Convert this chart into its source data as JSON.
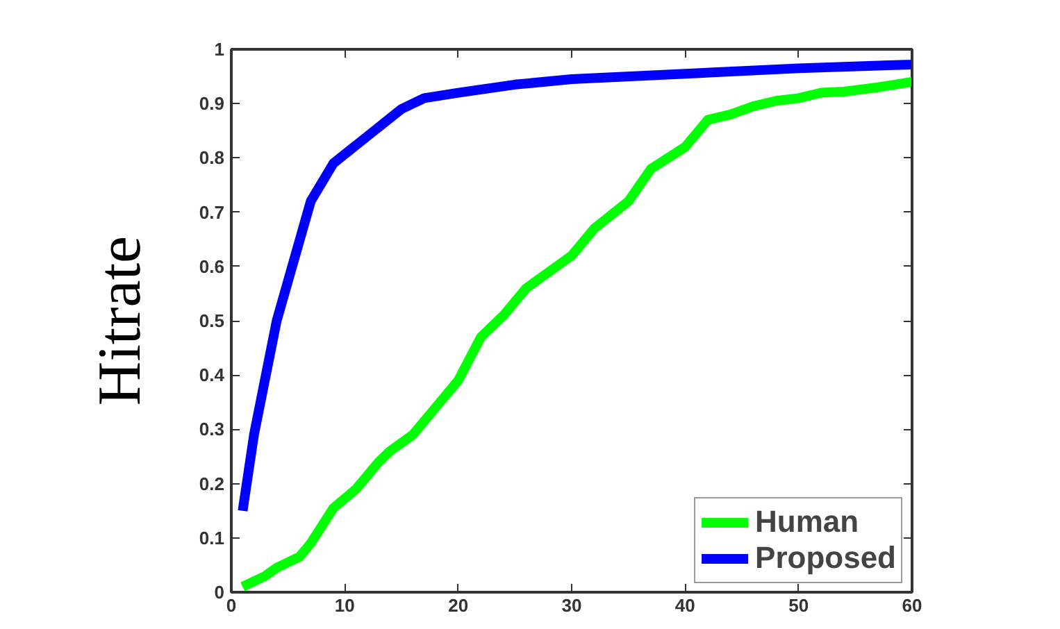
{
  "chart_data": {
    "type": "line",
    "ylabel": "Hitrate",
    "xlim": [
      0,
      60
    ],
    "ylim": [
      0,
      1
    ],
    "xticks": [
      0,
      10,
      20,
      30,
      40,
      50,
      60
    ],
    "yticks": [
      0,
      0.1,
      0.2,
      0.3,
      0.4,
      0.5,
      0.6,
      0.7,
      0.8,
      0.9,
      1
    ],
    "legend": "bottom right",
    "line_style": "solid",
    "series": [
      {
        "name": "Human",
        "color": "#00ff00",
        "x": [
          1,
          3,
          4,
          6,
          7,
          9,
          11,
          13,
          14,
          16,
          18,
          20,
          21,
          22,
          24,
          26,
          28,
          30,
          32,
          35,
          36,
          37,
          40,
          41,
          42,
          44,
          46,
          48,
          50,
          52,
          54,
          57,
          60
        ],
        "values": [
          0.01,
          0.03,
          0.045,
          0.065,
          0.09,
          0.155,
          0.19,
          0.24,
          0.26,
          0.29,
          0.34,
          0.39,
          0.43,
          0.47,
          0.51,
          0.56,
          0.59,
          0.62,
          0.67,
          0.72,
          0.75,
          0.78,
          0.82,
          0.845,
          0.87,
          0.88,
          0.895,
          0.905,
          0.91,
          0.92,
          0.922,
          0.93,
          0.94
        ]
      },
      {
        "name": "Proposed",
        "color": "#0000ff",
        "x": [
          1,
          2,
          4,
          7,
          9,
          12,
          15,
          17,
          20,
          25,
          30,
          40,
          50,
          60
        ],
        "values": [
          0.15,
          0.29,
          0.5,
          0.72,
          0.79,
          0.84,
          0.89,
          0.91,
          0.92,
          0.935,
          0.945,
          0.955,
          0.965,
          0.972
        ]
      }
    ]
  }
}
